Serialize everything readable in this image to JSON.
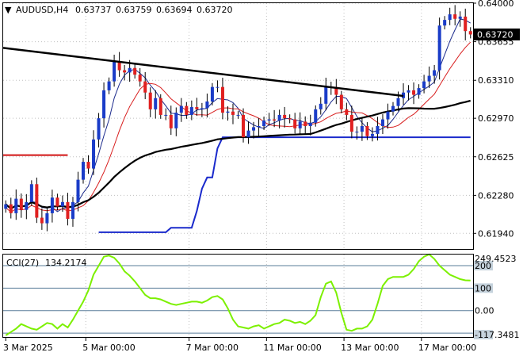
{
  "header": {
    "arrow_glyph": "▼",
    "symbol": "AUDUSD,H4",
    "open": "0.63737",
    "high": "0.63759",
    "low": "0.63694",
    "close": "0.63720"
  },
  "colors": {
    "bull": "#1a3cc8",
    "bear": "#e02020",
    "wick": "#000000",
    "fast_ma": "#1b2a8c",
    "slow_ma": "#d81e1e",
    "long_ma": "#000000",
    "stop_lower": "#1a2acc",
    "stop_upper": "#d01010",
    "trendline": "#000000",
    "cci": "#7cf000",
    "price_box_bg": "#000000",
    "price_box_text": "#ffffff",
    "level_line": "#5a7d9a"
  },
  "chart_data": {
    "type": "candlestick",
    "symbol": "AUDUSD",
    "timeframe": "H4",
    "price_axis": {
      "ylim": [
        0.618,
        0.64
      ],
      "ticks": [
        "0.64000",
        "0.63655",
        "0.63310",
        "0.62970",
        "0.62625",
        "0.62280",
        "0.61940"
      ],
      "tick_values": [
        0.64,
        0.63655,
        0.6331,
        0.6297,
        0.62625,
        0.6228,
        0.6194
      ]
    },
    "current_price": {
      "label": "0.63720",
      "value": 0.6372
    },
    "time_axis": {
      "bar_count": 91,
      "labels": [
        "3 Mar 2025",
        "5 Mar 00:00",
        "7 Mar 00:00",
        "11 Mar 00:00",
        "13 Mar 00:00",
        "17 Mar 00:00"
      ],
      "label_bar_index": [
        0,
        15.5,
        35.5,
        50.5,
        65.5,
        80.5
      ]
    },
    "candles_close": [
      0.622,
      0.6212,
      0.6225,
      0.6215,
      0.6222,
      0.6238,
      0.6208,
      0.6203,
      0.6212,
      0.6226,
      0.6218,
      0.6222,
      0.6207,
      0.6222,
      0.6242,
      0.6258,
      0.6252,
      0.6278,
      0.6297,
      0.6322,
      0.633,
      0.6348,
      0.634,
      0.6338,
      0.6342,
      0.6336,
      0.633,
      0.632,
      0.6305,
      0.6315,
      0.63,
      0.63,
      0.6288,
      0.6302,
      0.6308,
      0.63,
      0.6307,
      0.6305,
      0.6306,
      0.6312,
      0.6325,
      0.6325,
      0.6302,
      0.6303,
      0.63,
      0.63,
      0.628,
      0.6286,
      0.6289,
      0.629,
      0.6295,
      0.6296,
      0.6295,
      0.63,
      0.6297,
      0.6296,
      0.6288,
      0.6294,
      0.629,
      0.6293,
      0.6305,
      0.631,
      0.6325,
      0.6325,
      0.6318,
      0.6305,
      0.63,
      0.6285,
      0.6285,
      0.629,
      0.6281,
      0.6283,
      0.629,
      0.6296,
      0.6303,
      0.6308,
      0.6315,
      0.632,
      0.6322,
      0.6318,
      0.6324,
      0.633,
      0.6335,
      0.634,
      0.638,
      0.6385,
      0.639,
      0.6386,
      0.6388,
      0.6375,
      0.6372
    ],
    "trendline": {
      "start": [
        0,
        0.636
      ],
      "end": [
        77,
        0.6317
      ]
    },
    "cci": {
      "name": "CCI(27)",
      "value": "134.2174",
      "ylim": [
        -117.3481,
        249.4523
      ],
      "axis_labels": [
        "249.4523",
        "200",
        "100",
        "0.00",
        "-117.3481"
      ],
      "levels": [
        200,
        100,
        0,
        -100
      ],
      "values": [
        -110,
        -95,
        -80,
        -60,
        -70,
        -80,
        -85,
        -70,
        -55,
        -60,
        -80,
        -60,
        -75,
        -40,
        0,
        40,
        90,
        160,
        200,
        240,
        245,
        235,
        210,
        175,
        155,
        130,
        100,
        70,
        55,
        55,
        50,
        40,
        30,
        25,
        30,
        35,
        40,
        40,
        35,
        45,
        60,
        65,
        50,
        10,
        -40,
        -70,
        -75,
        -80,
        -70,
        -65,
        -80,
        -70,
        -60,
        -55,
        -40,
        -45,
        -55,
        -50,
        -60,
        -45,
        -20,
        60,
        120,
        130,
        80,
        -10,
        -85,
        -90,
        -80,
        -80,
        -70,
        -40,
        30,
        110,
        140,
        150,
        150,
        150,
        160,
        185,
        220,
        240,
        250,
        230,
        200,
        180,
        160,
        150,
        140,
        135,
        134
      ]
    }
  }
}
